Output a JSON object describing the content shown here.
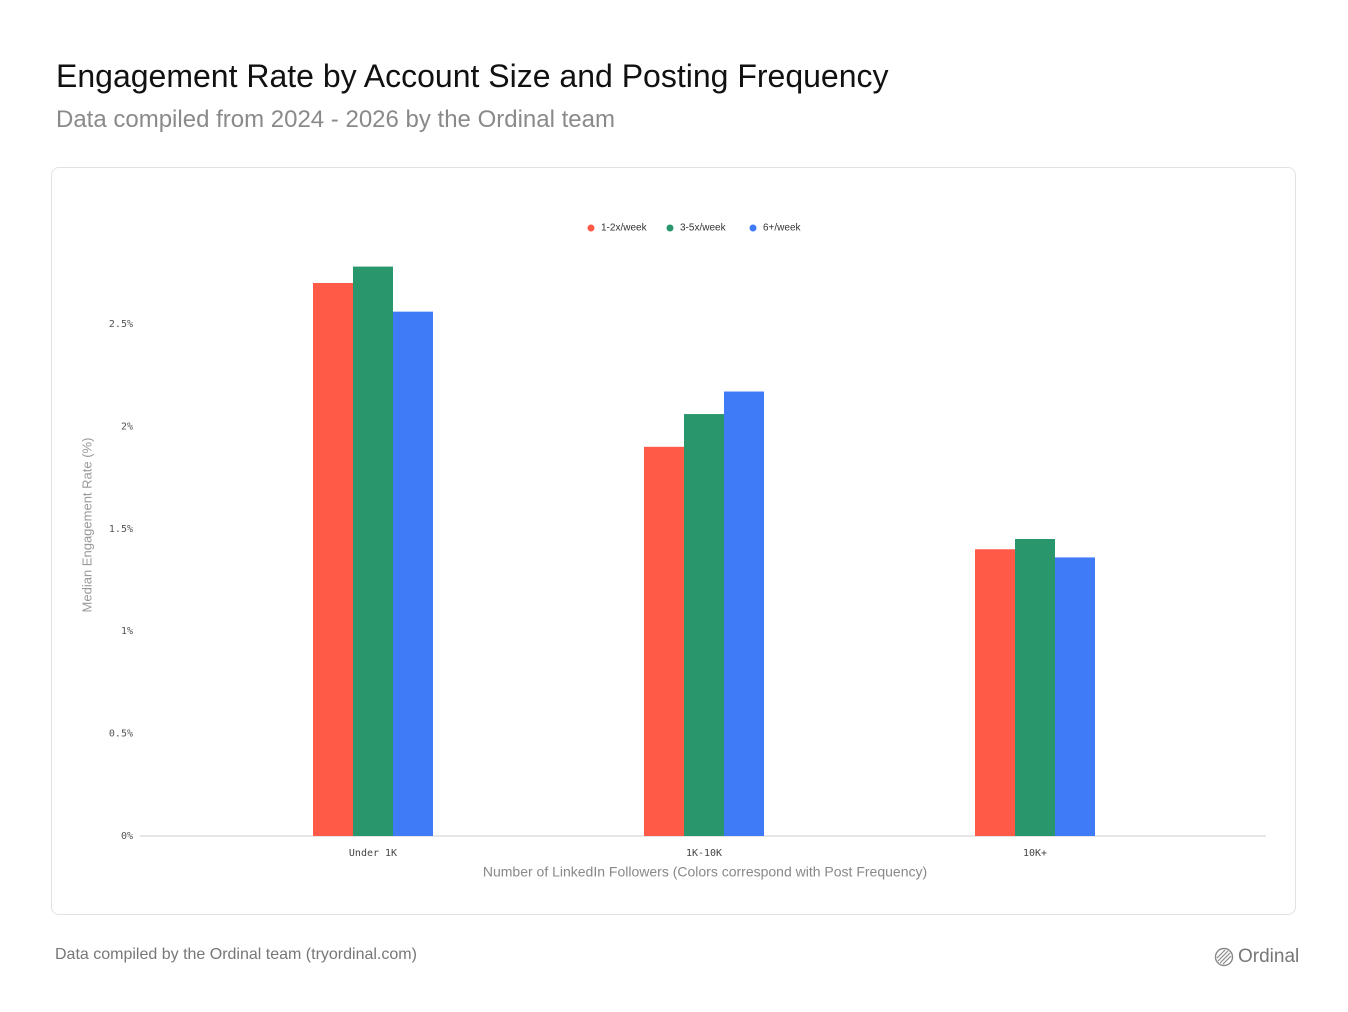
{
  "chart_data": {
    "type": "bar",
    "title": "Engagement Rate by Account Size and Posting Frequency",
    "subtitle": "Data compiled from 2024 - 2026 by the Ordinal team",
    "x_label": "Number of LinkedIn Followers (Colors correspond with Post Frequency)",
    "y_label": "Median Engagement Rate (%)",
    "categories": [
      "Under 1K",
      "1K-10K",
      "10K+"
    ],
    "series": [
      {
        "name": "1-2x/week",
        "color": "#ff5a47",
        "values": [
          2.7,
          1.9,
          1.4
        ]
      },
      {
        "name": "3-5x/week",
        "color": "#29966b",
        "values": [
          2.78,
          2.06,
          1.45
        ]
      },
      {
        "name": "6+/week",
        "color": "#3f7bf6",
        "values": [
          2.56,
          2.17,
          1.36
        ]
      }
    ],
    "ylim": [
      0,
      2.9
    ],
    "yticks": [
      {
        "value": 0,
        "label": "0%"
      },
      {
        "value": 0.5,
        "label": "0.5%"
      },
      {
        "value": 1,
        "label": "1%"
      },
      {
        "value": 1.5,
        "label": "1.5%"
      },
      {
        "value": 2,
        "label": "2%"
      },
      {
        "value": 2.5,
        "label": "2.5%"
      }
    ],
    "grid": false,
    "legend": "top"
  },
  "footer": "Data compiled by the Ordinal team (tryordinal.com)",
  "logo": "Ordinal"
}
